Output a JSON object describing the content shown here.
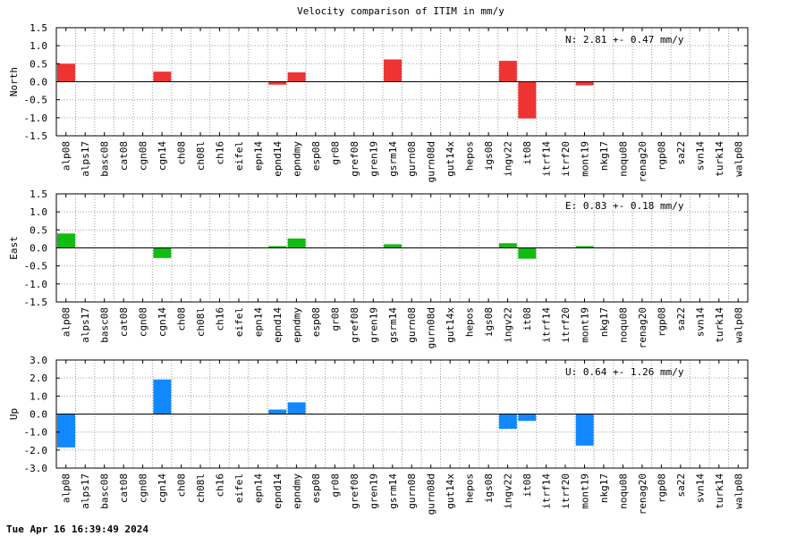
{
  "chart_data": {
    "type": "bar",
    "title": "Velocity comparison of ITIM in mm/y",
    "categories": [
      "alp08",
      "alps17",
      "basc08",
      "cat08",
      "cgn08",
      "cgn14",
      "ch08",
      "ch08l",
      "ch16",
      "eifel",
      "epn14",
      "epnd14",
      "epndmy",
      "esp08",
      "gr08",
      "gref08",
      "gren19",
      "gsrm14",
      "gurn08",
      "gurn08d",
      "gut14x",
      "hepos",
      "igs08",
      "ingv22",
      "it08",
      "itrf14",
      "itrf20",
      "mont19",
      "nkg17",
      "noqu08",
      "renag20",
      "rgp08",
      "sa22",
      "svn14",
      "turk14",
      "walp08"
    ],
    "panels": [
      {
        "ylabel": "North",
        "ylim": [
          -1.5,
          1.5
        ],
        "yticks": [
          "1.5",
          "1.0",
          "0.5",
          "0.0",
          "-0.5",
          "-1.0",
          "-1.5"
        ],
        "ytick_values": [
          1.5,
          1.0,
          0.5,
          0.0,
          -0.5,
          -1.0,
          -1.5
        ],
        "color": "#ee3333",
        "annotation": "N:   2.81 +-  0.47 mm/y",
        "values": [
          0.5,
          0,
          0,
          0,
          0,
          0.28,
          0,
          0,
          0,
          0,
          0,
          -0.08,
          0.26,
          0,
          0,
          0,
          0,
          0.62,
          0,
          0,
          0,
          0,
          0,
          0.58,
          -1.02,
          0,
          0,
          -0.1,
          0,
          0,
          0,
          0,
          0,
          0,
          0,
          0
        ]
      },
      {
        "ylabel": "East",
        "ylim": [
          -1.5,
          1.5
        ],
        "yticks": [
          "1.5",
          "1.0",
          "0.5",
          "0.0",
          "-0.5",
          "-1.0",
          "-1.5"
        ],
        "ytick_values": [
          1.5,
          1.0,
          0.5,
          0.0,
          -0.5,
          -1.0,
          -1.5
        ],
        "color": "#11bb11",
        "annotation": "E:   0.83 +-  0.18 mm/y",
        "values": [
          0.4,
          0,
          0,
          0,
          0,
          -0.28,
          0,
          0,
          0,
          0,
          0,
          0.05,
          0.26,
          0,
          0,
          0,
          0,
          0.1,
          0,
          0,
          0,
          0,
          0,
          0.13,
          -0.3,
          0,
          0,
          0.05,
          0,
          0,
          0,
          0,
          0,
          0,
          0,
          0
        ]
      },
      {
        "ylabel": "Up",
        "ylim": [
          -3.0,
          3.0
        ],
        "yticks": [
          "3.0",
          "2.0",
          "1.0",
          "0.0",
          "-1.0",
          "-2.0",
          "-3.0"
        ],
        "ytick_values": [
          3.0,
          2.0,
          1.0,
          0.0,
          -1.0,
          -2.0,
          -3.0
        ],
        "color": "#1188ff",
        "annotation": "U:   0.64 +-  1.26 mm/y",
        "values": [
          -1.85,
          0,
          0,
          0,
          0,
          1.92,
          0,
          0,
          0,
          0,
          0,
          0.25,
          0.65,
          0,
          0,
          0,
          0,
          0,
          0,
          0,
          0,
          0,
          0,
          -0.82,
          -0.38,
          0,
          0,
          -1.75,
          0,
          0,
          0,
          0,
          0,
          0,
          0,
          0
        ]
      }
    ]
  },
  "footer": {
    "timestamp": "Tue Apr 16 16:39:49 2024"
  }
}
